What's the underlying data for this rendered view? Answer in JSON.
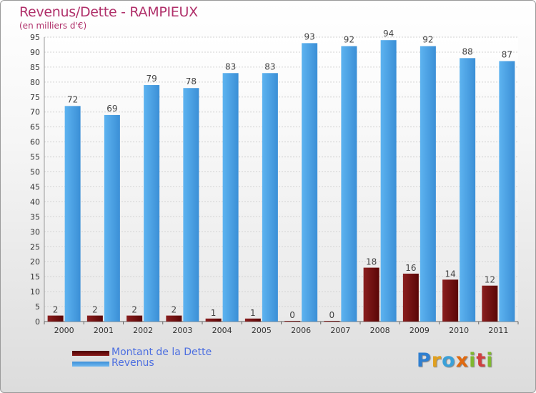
{
  "header": {
    "title": "Revenus/Dette - RAMPIEUX",
    "subtitle": "(en milliers d'€)"
  },
  "legend": {
    "items": [
      {
        "label": "Montant de la Dette",
        "color": "#6b0a0a"
      },
      {
        "label": "Revenus",
        "color": "#4aa3e8"
      }
    ]
  },
  "logo": {
    "text": "Proxiti"
  },
  "chart_data": {
    "type": "bar",
    "title": "Revenus/Dette - RAMPIEUX",
    "subtitle": "(en milliers d'€)",
    "categories": [
      "2000",
      "2001",
      "2002",
      "2003",
      "2004",
      "2005",
      "2006",
      "2007",
      "2008",
      "2009",
      "2010",
      "2011"
    ],
    "series": [
      {
        "name": "Montant de la Dette",
        "color": "#6b0a0a",
        "values": [
          2,
          2,
          2,
          2,
          1,
          1,
          0,
          0,
          18,
          16,
          14,
          12
        ]
      },
      {
        "name": "Revenus",
        "color": "#4aa3e8",
        "values": [
          72,
          69,
          79,
          78,
          83,
          83,
          93,
          92,
          94,
          92,
          88,
          87
        ]
      }
    ],
    "ylim": [
      0,
      95
    ],
    "yticks": [
      0,
      5,
      10,
      15,
      20,
      25,
      30,
      35,
      40,
      45,
      50,
      55,
      60,
      65,
      70,
      75,
      80,
      85,
      90,
      95
    ],
    "grid": true,
    "legend_position": "bottom-left"
  }
}
